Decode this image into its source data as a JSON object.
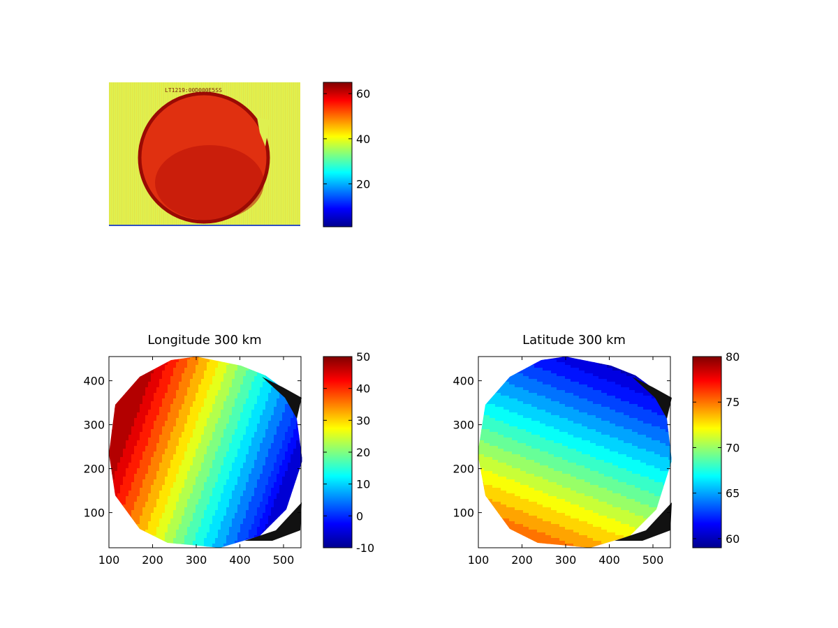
{
  "chart_data": [
    {
      "type": "heatmap",
      "title": "",
      "content": "image",
      "colorbar": {
        "min": 1,
        "max": 65,
        "ticks": [
          20,
          40,
          60
        ]
      },
      "background_value": 44,
      "disk_value": 62,
      "overlay_text": "LT1219:00D000E5SS"
    },
    {
      "type": "heatmap",
      "title": "Longitude 300 km",
      "variable": "longitude",
      "xlim": [
        100,
        540
      ],
      "ylim": [
        20,
        455
      ],
      "xticks": [
        100,
        200,
        300,
        400,
        500
      ],
      "yticks": [
        100,
        200,
        300,
        400
      ],
      "colorbar": {
        "min": -10,
        "max": 50,
        "ticks": [
          -10,
          0,
          10,
          20,
          30,
          40,
          50
        ]
      },
      "contour_levels": [
        -5,
        -2,
        0,
        2,
        5,
        8,
        11,
        14,
        17,
        20,
        23,
        26,
        29,
        32,
        35,
        38,
        41,
        44,
        47
      ],
      "value_range": [
        -5,
        48
      ]
    },
    {
      "type": "heatmap",
      "title": "Latitude 300 km",
      "variable": "latitude",
      "xlim": [
        100,
        540
      ],
      "ylim": [
        20,
        455
      ],
      "xticks": [
        100,
        200,
        300,
        400,
        500
      ],
      "yticks": [
        100,
        200,
        300,
        400
      ],
      "colorbar": {
        "min": 59,
        "max": 80,
        "ticks": [
          60,
          65,
          70,
          75,
          80
        ]
      },
      "contour_levels": [
        60,
        61,
        62,
        63,
        64,
        65,
        66,
        67,
        68,
        69,
        70,
        71,
        72,
        73,
        74,
        75,
        76,
        77
      ],
      "value_range": [
        59.5,
        78
      ]
    }
  ],
  "colormap": "jet"
}
